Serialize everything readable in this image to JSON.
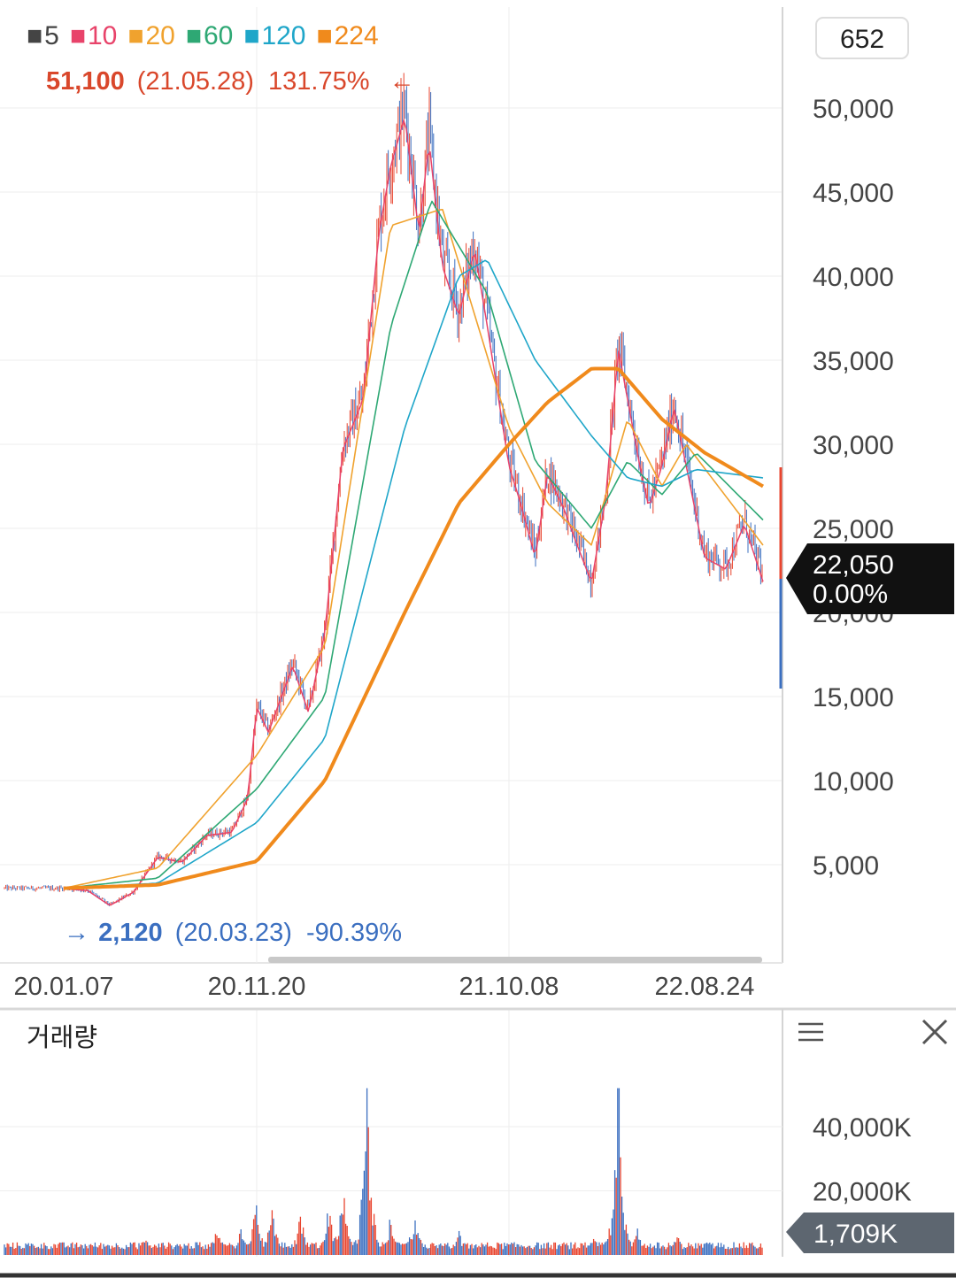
{
  "legend": {
    "moving_averages": [
      {
        "label": "5",
        "color": "#444444"
      },
      {
        "label": "10",
        "color": "#e8436a"
      },
      {
        "label": "20",
        "color": "#f0a22e"
      },
      {
        "label": "60",
        "color": "#2ea874"
      },
      {
        "label": "120",
        "color": "#1fa6c9"
      },
      {
        "label": "224",
        "color": "#f08a1c"
      }
    ]
  },
  "period_box": "652",
  "high_marker": {
    "price": "51,100",
    "date": "(21.05.28)",
    "pct": "131.75%",
    "arrow": "←"
  },
  "low_marker": {
    "arrow": "→",
    "price": "2,120",
    "date": "(20.03.23)",
    "pct": "-90.39%"
  },
  "current": {
    "price": "22,050",
    "change": "0.00%"
  },
  "volume_panel": {
    "title": "거래량",
    "current": "1,709K",
    "menu_icon": "hamburger-icon",
    "close_icon": "close-icon"
  },
  "colors": {
    "up": "#e8452f",
    "down": "#3b6fc0",
    "ma224": "#f08a1c"
  },
  "chart_data": {
    "type": "candlestick",
    "price_axis": {
      "ticks": [
        5000,
        10000,
        15000,
        20000,
        25000,
        30000,
        35000,
        40000,
        45000,
        50000
      ],
      "tick_labels": [
        "5,000",
        "10,000",
        "15,000",
        "20,000",
        "25,000",
        "30,000",
        "35,000",
        "40,000",
        "45,000",
        "50,000"
      ],
      "range": [
        0,
        52000
      ]
    },
    "date_axis": {
      "labels": [
        "20.01.07",
        "20.11.20",
        "21.10.08",
        "22.08.24"
      ]
    },
    "price_series": [
      [
        "20.01.07",
        3600
      ],
      [
        "20.02.15",
        3500
      ],
      [
        "20.03.23",
        2600
      ],
      [
        "20.05.01",
        3400
      ],
      [
        "20.06.10",
        5500
      ],
      [
        "20.07.20",
        5200
      ],
      [
        "20.08.30",
        6800
      ],
      [
        "20.10.10",
        7000
      ],
      [
        "20.11.05",
        9000
      ],
      [
        "20.11.20",
        14500
      ],
      [
        "20.12.05",
        13000
      ],
      [
        "21.01.05",
        17000
      ],
      [
        "21.01.25",
        14200
      ],
      [
        "21.02.15",
        19000
      ],
      [
        "21.03.10",
        30000
      ],
      [
        "21.04.05",
        33000
      ],
      [
        "21.04.25",
        43000
      ],
      [
        "21.05.10",
        47000
      ],
      [
        "21.05.28",
        50000
      ],
      [
        "21.06.15",
        43000
      ],
      [
        "21.06.28",
        48500
      ],
      [
        "21.07.15",
        41000
      ],
      [
        "21.08.05",
        38000
      ],
      [
        "21.08.25",
        42000
      ],
      [
        "21.09.10",
        37500
      ],
      [
        "21.10.08",
        29000
      ],
      [
        "21.10.25",
        27000
      ],
      [
        "21.11.20",
        23500
      ],
      [
        "21.12.10",
        28500
      ],
      [
        "22.01.05",
        26500
      ],
      [
        "22.01.25",
        24500
      ],
      [
        "22.02.20",
        22000
      ],
      [
        "22.03.15",
        27000
      ],
      [
        "22.04.05",
        36000
      ],
      [
        "22.04.20",
        33000
      ],
      [
        "22.05.10",
        29000
      ],
      [
        "22.05.25",
        26500
      ],
      [
        "22.06.15",
        29000
      ],
      [
        "22.07.05",
        32500
      ],
      [
        "22.07.25",
        29000
      ],
      [
        "22.08.24",
        23500
      ],
      [
        "22.09.10",
        22800
      ],
      [
        "22.09.25",
        25500
      ],
      [
        "22.10.10",
        22050
      ]
    ],
    "moving_average_series": {
      "20": [
        [
          "20.01.07",
          3600
        ],
        [
          "20.06.10",
          4800
        ],
        [
          "20.11.20",
          11500
        ],
        [
          "21.02.15",
          18000
        ],
        [
          "21.05.10",
          43000
        ],
        [
          "21.07.15",
          44000
        ],
        [
          "21.10.08",
          31000
        ],
        [
          "21.12.10",
          26500
        ],
        [
          "22.02.20",
          24000
        ],
        [
          "22.04.20",
          31500
        ],
        [
          "22.06.15",
          27500
        ],
        [
          "22.07.25",
          30000
        ],
        [
          "22.10.10",
          24000
        ]
      ],
      "60": [
        [
          "20.01.07",
          3600
        ],
        [
          "20.06.10",
          4200
        ],
        [
          "20.11.20",
          9500
        ],
        [
          "21.02.15",
          15000
        ],
        [
          "21.05.10",
          37000
        ],
        [
          "21.07.01",
          44500
        ],
        [
          "21.09.10",
          39000
        ],
        [
          "21.11.20",
          29000
        ],
        [
          "22.02.20",
          25000
        ],
        [
          "22.04.20",
          29000
        ],
        [
          "22.06.15",
          27000
        ],
        [
          "22.08.10",
          29500
        ],
        [
          "22.10.10",
          25500
        ]
      ],
      "120": [
        [
          "20.01.07",
          3600
        ],
        [
          "20.06.10",
          3900
        ],
        [
          "20.11.20",
          7500
        ],
        [
          "21.02.15",
          12500
        ],
        [
          "21.05.28",
          31000
        ],
        [
          "21.08.05",
          40000
        ],
        [
          "21.09.10",
          41000
        ],
        [
          "21.11.20",
          35000
        ],
        [
          "22.02.20",
          30500
        ],
        [
          "22.04.20",
          28000
        ],
        [
          "22.06.15",
          27500
        ],
        [
          "22.08.10",
          28500
        ],
        [
          "22.10.10",
          28000
        ]
      ],
      "224": [
        [
          "20.01.07",
          3600
        ],
        [
          "20.06.10",
          3800
        ],
        [
          "20.11.20",
          5200
        ],
        [
          "21.02.15",
          10000
        ],
        [
          "21.05.28",
          20000
        ],
        [
          "21.08.05",
          26500
        ],
        [
          "21.10.08",
          30000
        ],
        [
          "21.12.10",
          32500
        ],
        [
          "22.02.20",
          34500
        ],
        [
          "22.04.05",
          34500
        ],
        [
          "22.06.15",
          31500
        ],
        [
          "22.08.24",
          29500
        ],
        [
          "22.10.10",
          27500
        ]
      ]
    },
    "volume_axis": {
      "tick_labels": [
        "20,000K",
        "40,000K"
      ],
      "ticks": [
        20000,
        40000
      ],
      "range": [
        0,
        55000
      ]
    },
    "volume_peaks": [
      [
        "20.05.20",
        7000
      ],
      [
        "20.09.15",
        10000
      ],
      [
        "20.10.25",
        11000
      ],
      [
        "20.11.20",
        20000
      ],
      [
        "20.12.10",
        17000
      ],
      [
        "21.01.15",
        15000
      ],
      [
        "21.02.20",
        18000
      ],
      [
        "21.03.10",
        26000
      ],
      [
        "21.04.10",
        52000
      ],
      [
        "21.05.10",
        14000
      ],
      [
        "21.06.10",
        16000
      ],
      [
        "21.08.05",
        9000
      ],
      [
        "22.02.25",
        6500
      ],
      [
        "22.04.05",
        53000
      ],
      [
        "22.05.05",
        10000
      ],
      [
        "22.07.10",
        8000
      ]
    ]
  }
}
